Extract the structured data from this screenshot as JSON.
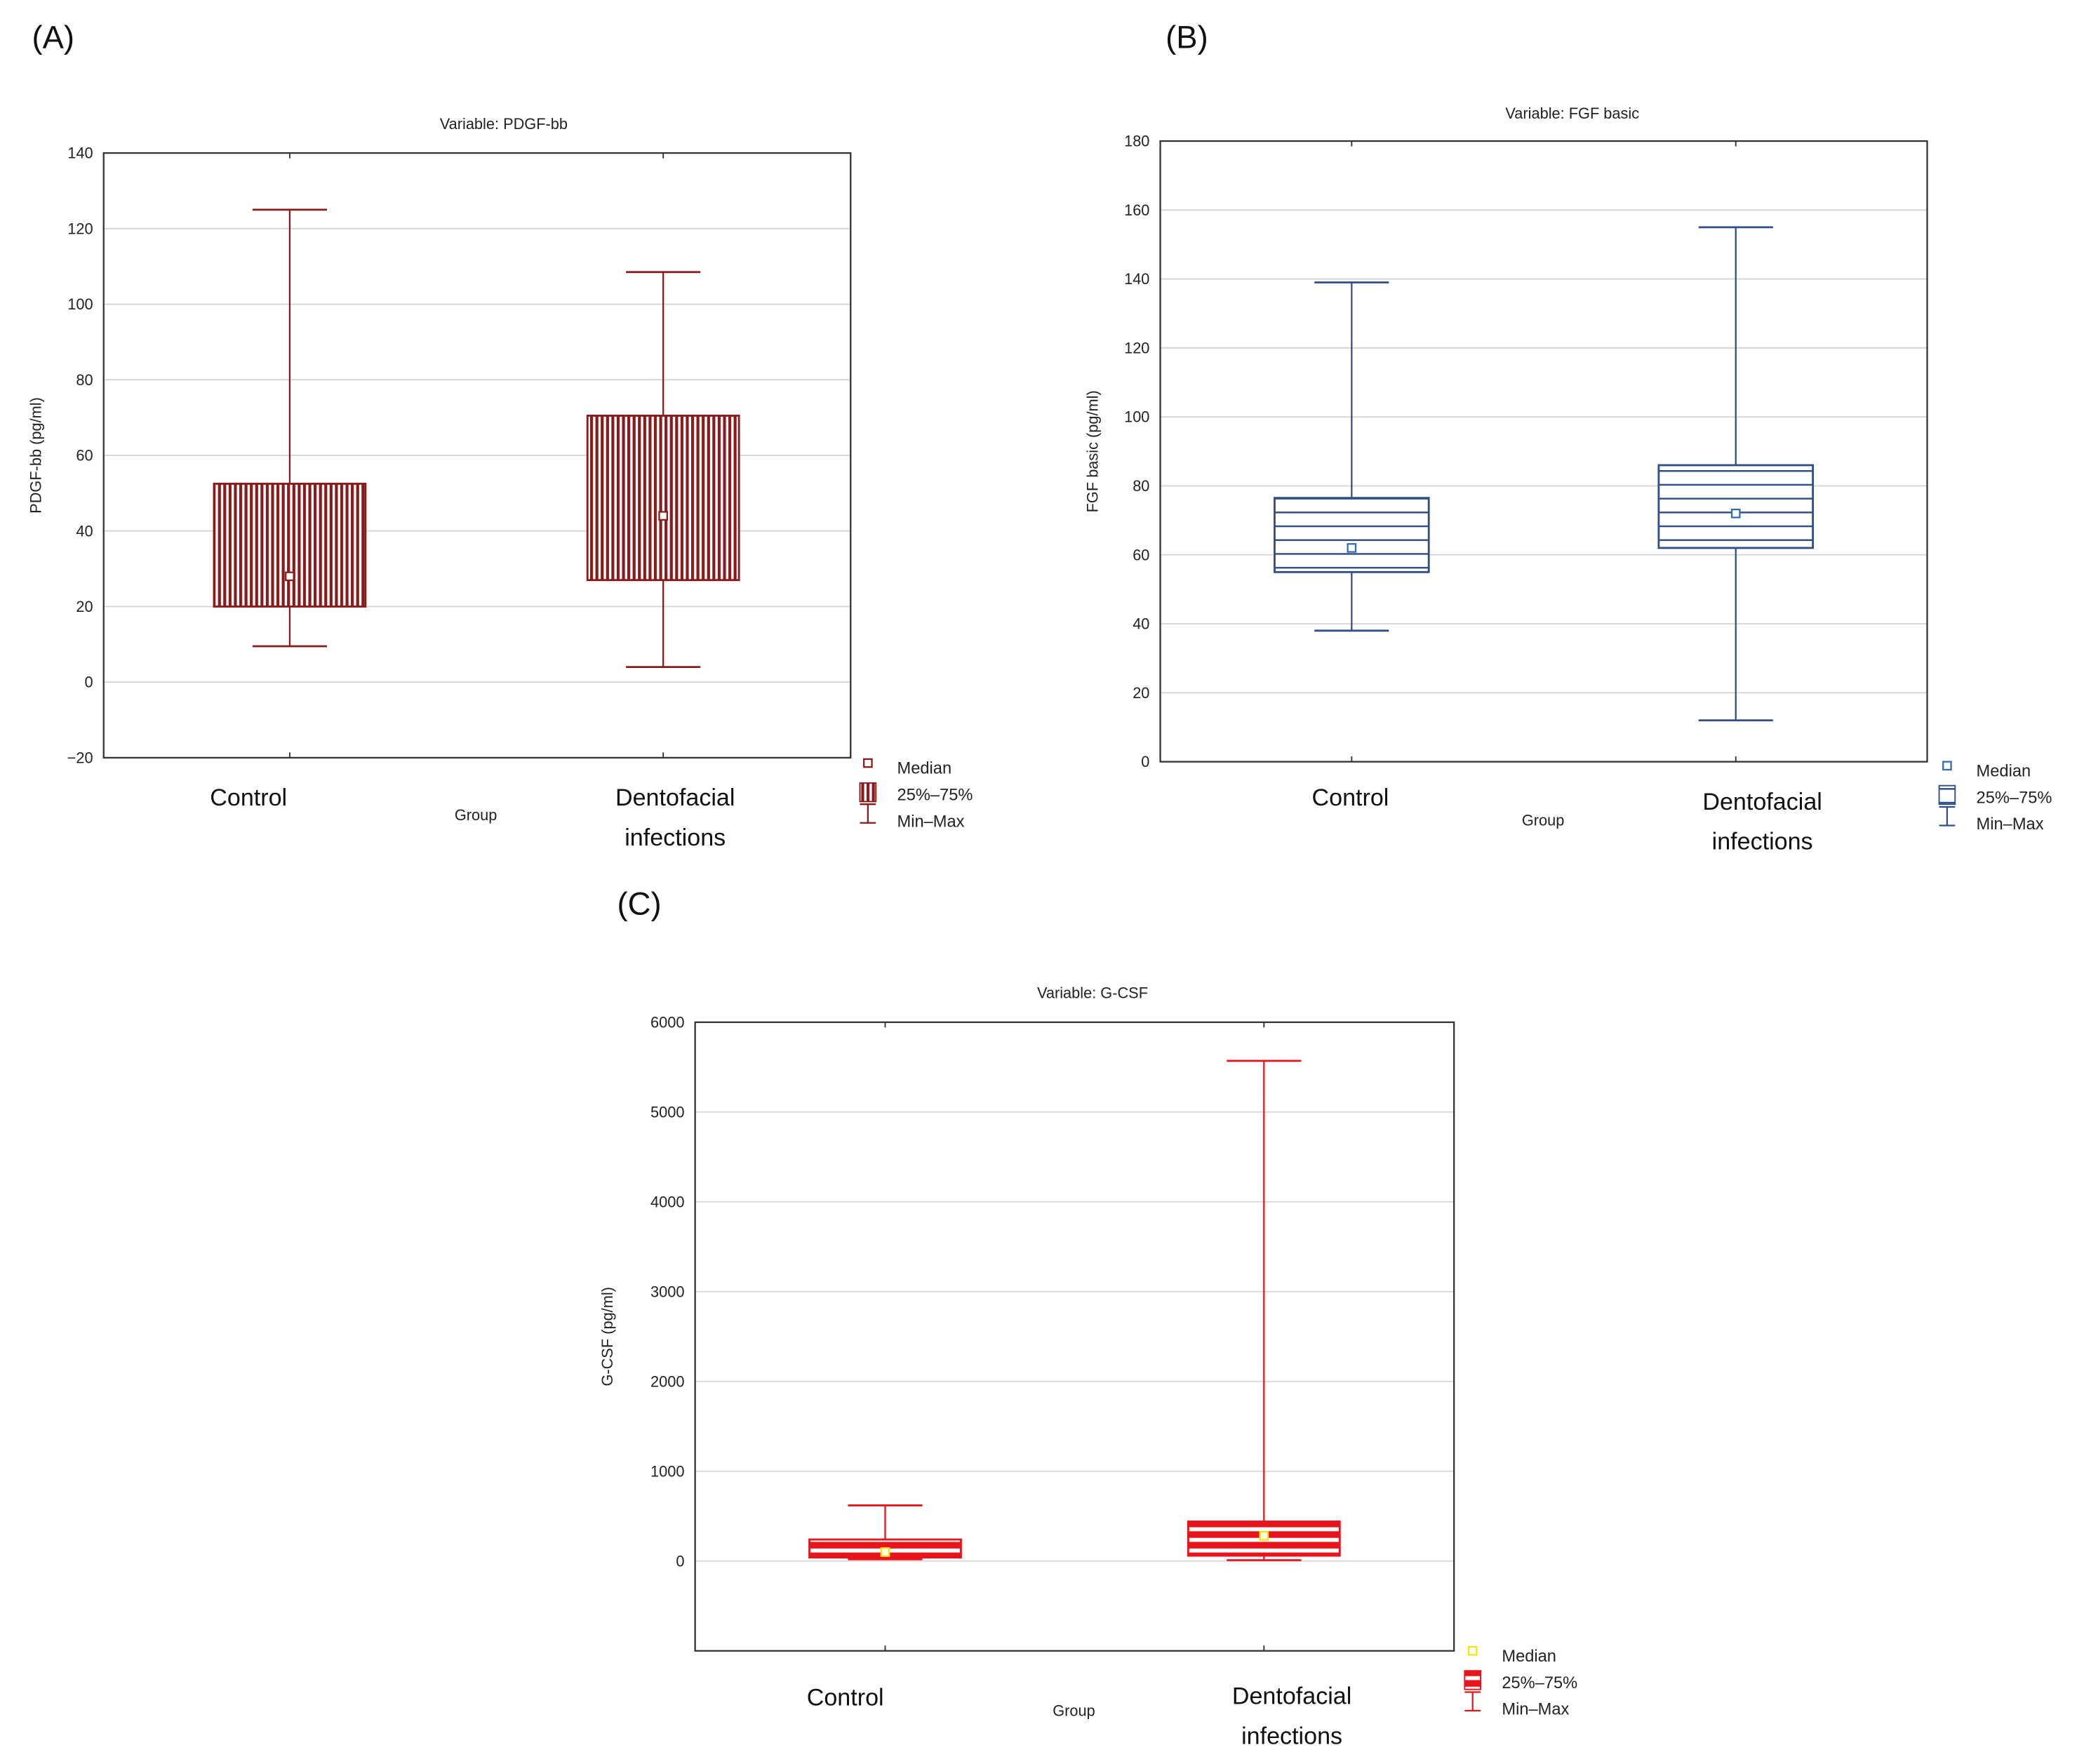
{
  "chart_data": [
    {
      "panel": "(A)",
      "type": "box",
      "title": "Variable: PDGF-bb",
      "xlabel": "Group",
      "ylabel": "PDGF-bb (pg/ml)",
      "ylim": [
        -20,
        140
      ],
      "yticks": [
        -20,
        0,
        20,
        40,
        60,
        80,
        100,
        120,
        140
      ],
      "ytick_labels": [
        "−20",
        "0",
        "20",
        "40",
        "60",
        "80",
        "100",
        "120",
        "140"
      ],
      "grid": true,
      "color": "#8b1a1a",
      "median_color": "#8b1a1a",
      "fill_pattern": "vertical-hatch",
      "categories": [
        [
          "Control"
        ],
        [
          "Dentofacial",
          "infections"
        ]
      ],
      "boxes": [
        {
          "min": 9.5,
          "q1": 20,
          "median": 28,
          "q3": 52.5,
          "max": 125
        },
        {
          "min": 4,
          "q1": 27,
          "median": 44,
          "q3": 70.5,
          "max": 108.5
        }
      ],
      "legend": [
        "Median",
        "25%–75%",
        "Min–Max"
      ],
      "legend_position": "bottom-right"
    },
    {
      "panel": "(B)",
      "type": "box",
      "title": "Variable: FGF basic",
      "xlabel": "Group",
      "ylabel": "FGF basic (pg/ml)",
      "ylim": [
        0,
        180
      ],
      "yticks": [
        0,
        20,
        40,
        60,
        80,
        100,
        120,
        140,
        160,
        180
      ],
      "ytick_labels": [
        "0",
        "20",
        "40",
        "60",
        "80",
        "100",
        "120",
        "140",
        "160",
        "180"
      ],
      "grid": true,
      "color": "#2f4f86",
      "median_color": "#2f6fb0",
      "fill_pattern": "horizontal-hatch",
      "categories": [
        [
          "Control"
        ],
        [
          "Dentofacial",
          "infections"
        ]
      ],
      "boxes": [
        {
          "min": 38,
          "q1": 55,
          "median": 62,
          "q3": 76.5,
          "max": 139
        },
        {
          "min": 12,
          "q1": 62,
          "median": 72,
          "q3": 86,
          "max": 155
        }
      ],
      "legend": [
        "Median",
        "25%–75%",
        "Min–Max"
      ],
      "legend_position": "bottom-right"
    },
    {
      "panel": "(C)",
      "type": "box",
      "title": "Variable: G-CSF",
      "xlabel": "Group",
      "ylabel": "G-CSF (pg/ml)",
      "ylim": [
        -1000,
        6000
      ],
      "yticks": [
        0,
        1000,
        2000,
        3000,
        4000,
        5000,
        6000
      ],
      "ytick_labels": [
        "0",
        "1000",
        "2000",
        "3000",
        "4000",
        "5000",
        "6000"
      ],
      "grid": true,
      "color": "#e8141c",
      "median_color": "#f5e600",
      "fill_pattern": "thick-horizontal-stripes",
      "categories": [
        [
          "Control"
        ],
        [
          "Dentofacial",
          "infections"
        ]
      ],
      "boxes": [
        {
          "min": 20,
          "q1": 40,
          "median": 100,
          "q3": 240,
          "max": 620
        },
        {
          "min": 10,
          "q1": 60,
          "median": 280,
          "q3": 440,
          "max": 5570
        }
      ],
      "legend": [
        "Median",
        "25%–75%",
        "Min–Max"
      ],
      "legend_position": "bottom-right"
    }
  ]
}
